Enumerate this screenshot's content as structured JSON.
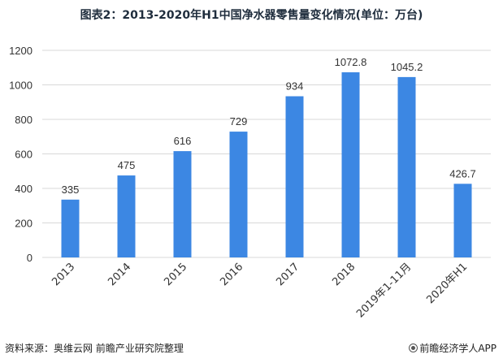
{
  "chart_data": {
    "type": "bar",
    "title": "图表2：2013-2020年H1中国净水器零售量变化情况(单位：万台)",
    "categories": [
      "2013",
      "2014",
      "2015",
      "2016",
      "2017",
      "2018",
      "2019年1-11月",
      "2020年H1"
    ],
    "values": [
      335,
      475,
      616,
      729,
      934,
      1072.8,
      1045.2,
      426.7
    ],
    "value_labels": [
      "335",
      "475",
      "616",
      "729",
      "934",
      "1072.8",
      "1045.2",
      "426.7"
    ],
    "ylim": [
      0,
      1200
    ],
    "yticks": [
      0,
      200,
      400,
      600,
      800,
      1000,
      1200
    ],
    "grid": true,
    "bar_color": "#3c87e3",
    "grid_color": "#d9d9d9"
  },
  "footer": {
    "source": "资料来源：奥维云网   前瞻产业研究院整理",
    "brand": "前瞻经济学人APP"
  }
}
